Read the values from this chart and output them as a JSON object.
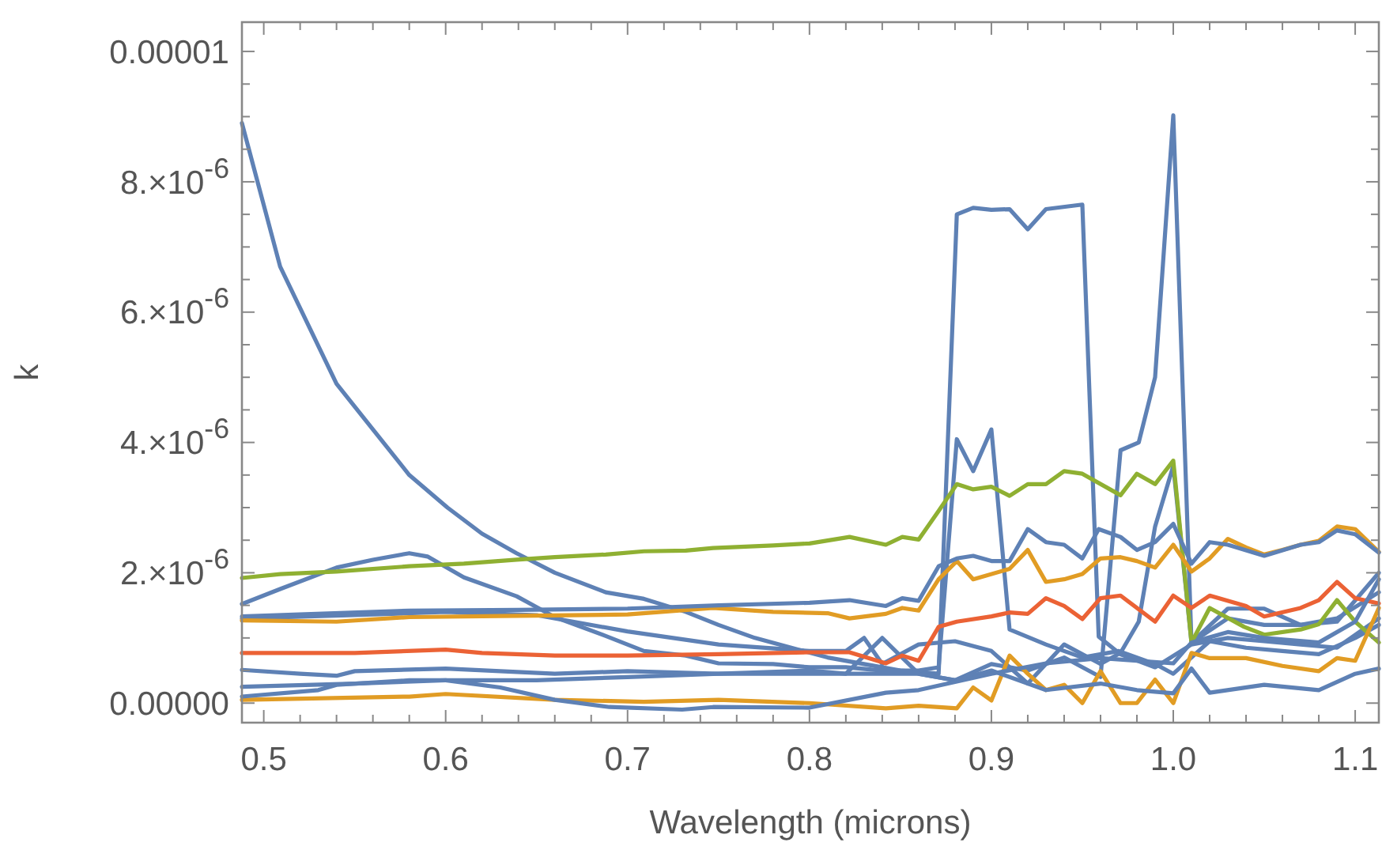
{
  "chart_data": {
    "type": "line",
    "xlabel": "Wavelength (microns)",
    "ylabel": "k",
    "grid": false,
    "line_style": "solid",
    "marker": "none",
    "xlim": [
      0.488,
      1.113
    ],
    "ylim": [
      -3e-07,
      1.045e-05
    ],
    "xticks": [
      {
        "value": 0.5,
        "label": "0.5"
      },
      {
        "value": 0.52,
        "label": null
      },
      {
        "value": 0.54,
        "label": null
      },
      {
        "value": 0.56,
        "label": null
      },
      {
        "value": 0.58,
        "label": null
      },
      {
        "value": 0.6,
        "label": "0.6"
      },
      {
        "value": 0.62,
        "label": null
      },
      {
        "value": 0.64,
        "label": null
      },
      {
        "value": 0.66,
        "label": null
      },
      {
        "value": 0.68,
        "label": null
      },
      {
        "value": 0.7,
        "label": "0.7"
      },
      {
        "value": 0.72,
        "label": null
      },
      {
        "value": 0.74,
        "label": null
      },
      {
        "value": 0.76,
        "label": null
      },
      {
        "value": 0.78,
        "label": null
      },
      {
        "value": 0.8,
        "label": "0.8"
      },
      {
        "value": 0.82,
        "label": null
      },
      {
        "value": 0.84,
        "label": null
      },
      {
        "value": 0.86,
        "label": null
      },
      {
        "value": 0.88,
        "label": null
      },
      {
        "value": 0.9,
        "label": "0.9"
      },
      {
        "value": 0.92,
        "label": null
      },
      {
        "value": 0.94,
        "label": null
      },
      {
        "value": 0.96,
        "label": null
      },
      {
        "value": 0.98,
        "label": null
      },
      {
        "value": 1.0,
        "label": "1.0"
      },
      {
        "value": 1.02,
        "label": null
      },
      {
        "value": 1.04,
        "label": null
      },
      {
        "value": 1.06,
        "label": null
      },
      {
        "value": 1.08,
        "label": null
      },
      {
        "value": 1.1,
        "label": "1.1"
      }
    ],
    "yticks": [
      {
        "value": 0,
        "label": "0.00000"
      },
      {
        "value": 5e-07,
        "label": null
      },
      {
        "value": 1e-06,
        "label": null
      },
      {
        "value": 1.5e-06,
        "label": null
      },
      {
        "value": 2e-06,
        "label": "2.×10$^{-6}$"
      },
      {
        "value": 2.5e-06,
        "label": null
      },
      {
        "value": 3e-06,
        "label": null
      },
      {
        "value": 3.5e-06,
        "label": null
      },
      {
        "value": 4e-06,
        "label": "4.×10$^{-6}$"
      },
      {
        "value": 4.5e-06,
        "label": null
      },
      {
        "value": 5e-06,
        "label": null
      },
      {
        "value": 5.5e-06,
        "label": null
      },
      {
        "value": 6e-06,
        "label": "6.×10$^{-6}$"
      },
      {
        "value": 6.5e-06,
        "label": null
      },
      {
        "value": 7e-06,
        "label": null
      },
      {
        "value": 7.5e-06,
        "label": null
      },
      {
        "value": 8e-06,
        "label": "8.×10$^{-6}$"
      },
      {
        "value": 8.5e-06,
        "label": null
      },
      {
        "value": 9e-06,
        "label": null
      },
      {
        "value": 9.5e-06,
        "label": null
      },
      {
        "value": 1e-05,
        "label": "0.00001"
      }
    ],
    "series": [
      {
        "color": "#5e81b5",
        "x": [
          0.488,
          0.509,
          0.54,
          0.56,
          0.58,
          0.601,
          0.62,
          0.639,
          0.66,
          0.688,
          0.709,
          0.732,
          0.75,
          0.77,
          0.79,
          0.81,
          0.83,
          0.85,
          0.871,
          0.881,
          0.89,
          0.9,
          0.91,
          0.92,
          0.93,
          0.95,
          0.959,
          0.971,
          0.99,
          1.01,
          1.03,
          1.05,
          1.07,
          1.09,
          1.113
        ],
        "values": [
          8.9e-06,
          6.7e-06,
          4.9e-06,
          4.2e-06,
          3.5e-06,
          3e-06,
          2.6e-06,
          2.3e-06,
          2e-06,
          1.7e-06,
          1.6e-06,
          1.4e-06,
          1.2e-06,
          1e-06,
          8.5e-07,
          7e-07,
          6e-07,
          5e-07,
          4.5e-07,
          7.5e-06,
          7.6e-06,
          7.57e-06,
          7.58e-06,
          7.27e-06,
          7.58e-06,
          7.65e-06,
          1.02e-06,
          7.5e-07,
          5.5e-07,
          9e-07,
          1e-06,
          9.5e-07,
          9e-07,
          8.5e-07,
          1.3e-06
        ]
      },
      {
        "color": "#5e81b5",
        "x": [
          0.488,
          0.509,
          0.54,
          0.56,
          0.58,
          0.59,
          0.61,
          0.639,
          0.66,
          0.688,
          0.709,
          0.732,
          0.75,
          0.78,
          0.8,
          0.82,
          0.84,
          0.86,
          0.871,
          0.881,
          0.89,
          0.9,
          0.91,
          0.93,
          0.95,
          0.97,
          0.99,
          1.0,
          1.02,
          1.04,
          1.06,
          1.08,
          1.1,
          1.113
        ],
        "values": [
          1.52e-06,
          1.75e-06,
          2.08e-06,
          2.2e-06,
          2.3e-06,
          2.25e-06,
          1.93e-06,
          1.64e-06,
          1.32e-06,
          1.03e-06,
          8e-07,
          7.3e-07,
          6.1e-07,
          6e-07,
          5.5e-07,
          5.5e-07,
          5e-07,
          5e-07,
          5.5e-07,
          4.05e-06,
          3.56e-06,
          4.2e-06,
          1.13e-06,
          9e-07,
          7e-07,
          8e-07,
          6e-07,
          4.5e-07,
          9.5e-07,
          8.5e-07,
          8e-07,
          7.5e-07,
          1e-06,
          1.2e-06
        ]
      },
      {
        "color": "#5e81b5",
        "x": [
          0.488,
          0.55,
          0.6,
          0.65,
          0.7,
          0.75,
          0.8,
          0.82,
          0.84,
          0.86,
          0.88,
          0.9,
          0.92,
          0.94,
          0.96,
          0.971,
          0.981,
          0.99,
          1.0,
          1.01,
          1.03,
          1.05,
          1.07,
          1.09,
          1.113
        ],
        "values": [
          2.5e-07,
          3e-07,
          3.5e-07,
          3.5e-07,
          4e-07,
          4.5e-07,
          5e-07,
          4.5e-07,
          1e-06,
          4.5e-07,
          3.5e-07,
          6e-07,
          5e-07,
          7e-07,
          4e-07,
          3.88e-06,
          4e-06,
          5e-06,
          9.02e-06,
          9.3e-07,
          1.3e-06,
          1.2e-06,
          1.2e-06,
          1.25e-06,
          2e-06
        ]
      },
      {
        "color": "#5e81b5",
        "x": [
          0.488,
          0.55,
          0.6,
          0.65,
          0.7,
          0.75,
          0.8,
          0.82,
          0.83,
          0.84,
          0.86,
          0.88,
          0.9,
          0.92,
          0.94,
          0.96,
          0.971,
          0.981,
          0.99,
          1.0,
          1.01,
          1.03,
          1.05,
          1.07,
          1.09,
          1.113
        ],
        "values": [
          1.3e-06,
          1.35e-06,
          1.4e-06,
          1.35e-06,
          1.1e-06,
          9e-07,
          8e-07,
          8e-07,
          1e-06,
          6e-07,
          9e-07,
          9.5e-07,
          8e-07,
          3e-07,
          9e-07,
          6e-07,
          7.7e-07,
          1.25e-06,
          2.71e-06,
          3.64e-06,
          9.3e-07,
          1.45e-06,
          1.45e-06,
          1.2e-06,
          1.3e-06,
          1.7e-06
        ]
      },
      {
        "color": "#8fb032",
        "x": [
          0.488,
          0.509,
          0.54,
          0.58,
          0.61,
          0.639,
          0.66,
          0.688,
          0.709,
          0.732,
          0.747,
          0.78,
          0.8,
          0.822,
          0.842,
          0.851,
          0.86,
          0.871,
          0.881,
          0.89,
          0.9,
          0.91,
          0.92,
          0.93,
          0.94,
          0.95,
          0.971,
          0.98,
          0.99,
          1.0,
          1.01,
          1.02,
          1.039,
          1.05,
          1.07,
          1.08,
          1.09,
          1.1,
          1.113
        ],
        "values": [
          1.92e-06,
          1.98e-06,
          2.02e-06,
          2.1e-06,
          2.14e-06,
          2.2e-06,
          2.24e-06,
          2.28e-06,
          2.33e-06,
          2.34e-06,
          2.38e-06,
          2.42e-06,
          2.45e-06,
          2.55e-06,
          2.43e-06,
          2.55e-06,
          2.51e-06,
          2.95e-06,
          3.36e-06,
          3.28e-06,
          3.32e-06,
          3.18e-06,
          3.36e-06,
          3.36e-06,
          3.56e-06,
          3.52e-06,
          3.19e-06,
          3.52e-06,
          3.36e-06,
          3.72e-06,
          9.3e-07,
          1.46e-06,
          1.17e-06,
          1.05e-06,
          1.13e-06,
          1.21e-06,
          1.58e-06,
          1.25e-06,
          9.3e-07
        ]
      },
      {
        "color": "#e19c24",
        "x": [
          0.488,
          0.54,
          0.58,
          0.64,
          0.7,
          0.747,
          0.78,
          0.81,
          0.822,
          0.842,
          0.851,
          0.86,
          0.871,
          0.881,
          0.89,
          0.91,
          0.92,
          0.93,
          0.94,
          0.95,
          0.96,
          0.971,
          0.98,
          0.99,
          1.0,
          1.01,
          1.02,
          1.03,
          1.04,
          1.05,
          1.06,
          1.07,
          1.08,
          1.09,
          1.1,
          1.113
        ],
        "values": [
          1.27e-06,
          1.25e-06,
          1.32e-06,
          1.34e-06,
          1.36e-06,
          1.46e-06,
          1.4e-06,
          1.38e-06,
          1.3e-06,
          1.37e-06,
          1.46e-06,
          1.42e-06,
          1.9e-06,
          2.18e-06,
          1.9e-06,
          2.06e-06,
          2.35e-06,
          1.86e-06,
          1.9e-06,
          1.98e-06,
          2.22e-06,
          2.24e-06,
          2.18e-06,
          2.08e-06,
          2.43e-06,
          2.02e-06,
          2.22e-06,
          2.52e-06,
          2.39e-06,
          2.28e-06,
          2.35e-06,
          2.43e-06,
          2.49e-06,
          2.71e-06,
          2.67e-06,
          2.32e-06
        ]
      },
      {
        "color": "#5e81b5",
        "x": [
          0.488,
          0.58,
          0.64,
          0.7,
          0.75,
          0.8,
          0.822,
          0.842,
          0.851,
          0.86,
          0.871,
          0.881,
          0.89,
          0.9,
          0.91,
          0.92,
          0.93,
          0.94,
          0.95,
          0.959,
          0.971,
          0.98,
          0.99,
          1.0,
          1.01,
          1.02,
          1.03,
          1.05,
          1.07,
          1.08,
          1.09,
          1.1,
          1.113
        ],
        "values": [
          1.33e-06,
          1.42e-06,
          1.43e-06,
          1.45e-06,
          1.5e-06,
          1.54e-06,
          1.58e-06,
          1.49e-06,
          1.61e-06,
          1.57e-06,
          2.1e-06,
          2.22e-06,
          2.26e-06,
          2.18e-06,
          2.18e-06,
          2.67e-06,
          2.47e-06,
          2.43e-06,
          2.22e-06,
          2.67e-06,
          2.55e-06,
          2.35e-06,
          2.47e-06,
          2.75e-06,
          2.14e-06,
          2.47e-06,
          2.43e-06,
          2.26e-06,
          2.43e-06,
          2.47e-06,
          2.65e-06,
          2.59e-06,
          2.31e-06
        ]
      },
      {
        "color": "#eb6235",
        "x": [
          0.488,
          0.55,
          0.6,
          0.62,
          0.66,
          0.7,
          0.75,
          0.8,
          0.822,
          0.842,
          0.851,
          0.86,
          0.871,
          0.881,
          0.9,
          0.91,
          0.92,
          0.93,
          0.94,
          0.95,
          0.96,
          0.971,
          0.99,
          1.0,
          1.01,
          1.02,
          1.04,
          1.05,
          1.07,
          1.08,
          1.09,
          1.1,
          1.113
        ],
        "values": [
          7.7e-07,
          7.7e-07,
          8.2e-07,
          7.7e-07,
          7.3e-07,
          7.3e-07,
          7.5e-07,
          7.8e-07,
          7.8e-07,
          6.1e-07,
          7.3e-07,
          6.5e-07,
          1.17e-06,
          1.25e-06,
          1.33e-06,
          1.39e-06,
          1.37e-06,
          1.61e-06,
          1.49e-06,
          1.29e-06,
          1.61e-06,
          1.65e-06,
          1.25e-06,
          1.65e-06,
          1.46e-06,
          1.65e-06,
          1.49e-06,
          1.33e-06,
          1.46e-06,
          1.58e-06,
          1.86e-06,
          1.61e-06,
          1.53e-06
        ]
      },
      {
        "color": "#e19c24",
        "x": [
          0.488,
          0.58,
          0.6,
          0.66,
          0.709,
          0.75,
          0.8,
          0.842,
          0.86,
          0.881,
          0.89,
          0.9,
          0.91,
          0.92,
          0.93,
          0.94,
          0.95,
          0.96,
          0.971,
          0.98,
          0.99,
          1.0,
          1.01,
          1.02,
          1.04,
          1.06,
          1.08,
          1.09,
          1.1,
          1.113
        ],
        "values": [
          5e-08,
          1e-07,
          1.4e-07,
          5e-08,
          2e-08,
          5e-08,
          0,
          -8e-08,
          -4e-08,
          -8e-08,
          2.4e-07,
          4e-08,
          7.3e-07,
          4.5e-07,
          2e-07,
          2.8e-07,
          0,
          4.9e-07,
          0,
          0,
          3.6e-07,
          0,
          7.7e-07,
          6.9e-07,
          6.9e-07,
          5.7e-07,
          4.9e-07,
          6.9e-07,
          6.5e-07,
          1.46e-06
        ]
      },
      {
        "color": "#5e81b5",
        "x": [
          0.488,
          0.52,
          0.54,
          0.55,
          0.6,
          0.66,
          0.7,
          0.75,
          0.8,
          0.84,
          0.86,
          0.88,
          0.9,
          0.93,
          0.96,
          0.98,
          1.0,
          1.01,
          1.02,
          1.05,
          1.08,
          1.1,
          1.113
        ],
        "values": [
          5.1e-07,
          4.5e-07,
          4.2e-07,
          4.9e-07,
          5.3e-07,
          4.5e-07,
          4.9e-07,
          4.5e-07,
          4.5e-07,
          4.5e-07,
          4.5e-07,
          3.5e-07,
          5e-07,
          2e-07,
          3e-07,
          2e-07,
          1.5e-07,
          5.3e-07,
          1.6e-07,
          2.8e-07,
          2e-07,
          4.5e-07,
          5.3e-07
        ]
      },
      {
        "color": "#5e81b5",
        "x": [
          0.488,
          0.53,
          0.54,
          0.58,
          0.6,
          0.63,
          0.66,
          0.69,
          0.73,
          0.747,
          0.8,
          0.842,
          0.86,
          0.9,
          0.93,
          0.96,
          1.0,
          1.01,
          1.03,
          1.05,
          1.08,
          1.1,
          1.113
        ],
        "values": [
          1e-07,
          2e-07,
          2.8e-07,
          3.5e-07,
          3.5e-07,
          2.4e-07,
          5e-08,
          -6e-08,
          -1e-07,
          -6e-08,
          -7e-08,
          1.6e-07,
          2e-07,
          4.5e-07,
          6.1e-07,
          6.9e-07,
          6.1e-07,
          9.3e-07,
          1.09e-06,
          1e-06,
          9.3e-07,
          1.25e-06,
          1.9e-06
        ]
      }
    ]
  }
}
